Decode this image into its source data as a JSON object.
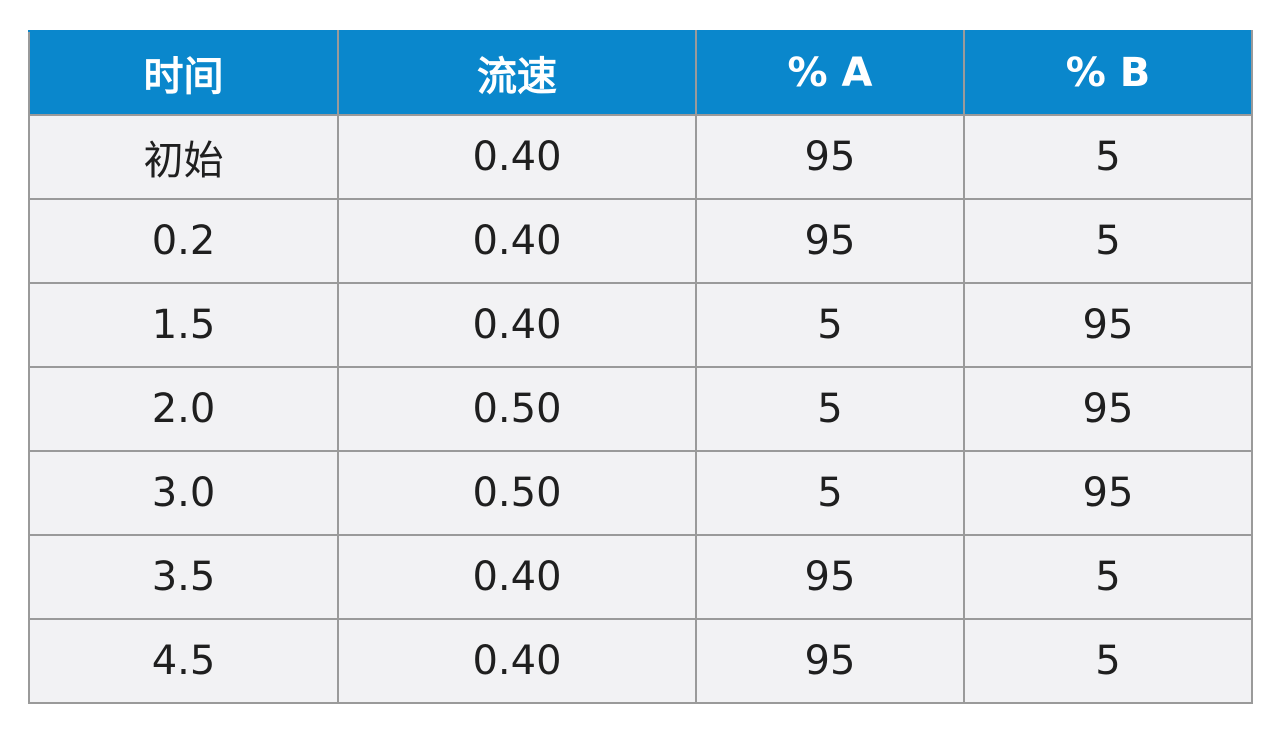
{
  "table": {
    "headers": [
      "时间",
      "流速",
      "% A",
      "% B"
    ],
    "rows": [
      [
        "初始",
        "0.40",
        "95",
        "5"
      ],
      [
        "0.2",
        "0.40",
        "95",
        "5"
      ],
      [
        "1.5",
        "0.40",
        "5",
        "95"
      ],
      [
        "2.0",
        "0.50",
        "5",
        "95"
      ],
      [
        "3.0",
        "0.50",
        "5",
        "95"
      ],
      [
        "3.5",
        "0.40",
        "95",
        "5"
      ],
      [
        "4.5",
        "0.40",
        "95",
        "5"
      ]
    ]
  },
  "colors": {
    "header_bg": "#0a87cc",
    "header_text": "#ffffff",
    "cell_bg": "#f2f2f4",
    "border": "#9a9a9a"
  }
}
